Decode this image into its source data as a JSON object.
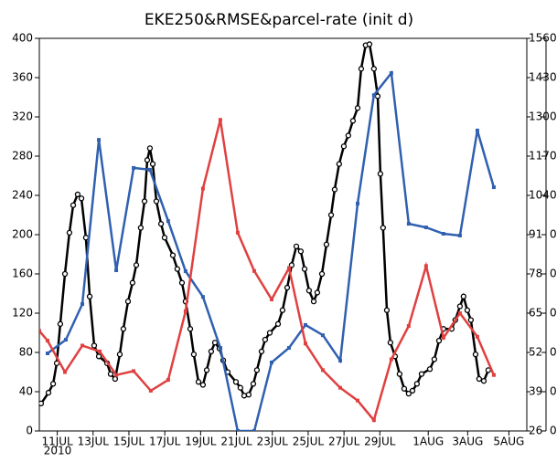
{
  "chart_data": {
    "type": "line",
    "title": "EKE250&RMSE&parcel-rate (init d)",
    "x_year_label": "2010",
    "xlim": [
      0,
      27.2
    ],
    "xticks": [
      {
        "value": 1,
        "label": "11JUL"
      },
      {
        "value": 3,
        "label": "13JUL"
      },
      {
        "value": 5,
        "label": "15JUL"
      },
      {
        "value": 7,
        "label": "17JUL"
      },
      {
        "value": 9,
        "label": "19JUL"
      },
      {
        "value": 11,
        "label": "21JUL"
      },
      {
        "value": 13,
        "label": "23JUL"
      },
      {
        "value": 15,
        "label": "25JUL"
      },
      {
        "value": 17,
        "label": "27JUL"
      },
      {
        "value": 19,
        "label": "29JUL"
      },
      {
        "value": 21.7,
        "label": "1AUG"
      },
      {
        "value": 23.9,
        "label": "3AUG"
      },
      {
        "value": 26.2,
        "label": "5AUG"
      }
    ],
    "ylim": [
      0,
      400
    ],
    "yticks": [
      0,
      40,
      80,
      120,
      160,
      200,
      240,
      280,
      320,
      360,
      400
    ],
    "y2lim": [
      26,
      156
    ],
    "y2ticks": [
      26,
      39,
      52,
      65,
      78,
      91,
      104,
      117,
      130,
      143,
      156
    ],
    "y3tick_labels": [
      "0",
      "0",
      "0",
      "0",
      "0",
      "0",
      "0",
      "0",
      "0",
      "0",
      "0"
    ],
    "series": [
      {
        "color": "#000000",
        "marker": "circle",
        "x": [
          0.1,
          0.51,
          0.77,
          0.97,
          1.17,
          1.43,
          1.68,
          1.89,
          2.14,
          2.35,
          2.6,
          2.81,
          3.06,
          3.32,
          3.78,
          3.98,
          4.23,
          4.49,
          4.69,
          4.95,
          5.2,
          5.41,
          5.66,
          5.87,
          6.02,
          6.17,
          6.33,
          6.53,
          6.79,
          6.99,
          7.45,
          7.7,
          7.96,
          8.16,
          8.42,
          8.62,
          8.88,
          9.13,
          9.34,
          9.59,
          9.8,
          10.05,
          10.26,
          10.51,
          10.97,
          11.22,
          11.43,
          11.68,
          11.94,
          12.14,
          12.4,
          12.6,
          12.86,
          13.32,
          13.57,
          13.83,
          14.08,
          14.34,
          14.59,
          14.8,
          15.05,
          15.31,
          15.51,
          15.77,
          16.02,
          16.28,
          16.48,
          16.73,
          16.99,
          17.24,
          17.5,
          17.76,
          17.96,
          18.21,
          18.42,
          18.67,
          18.88,
          19.03,
          19.18,
          19.39,
          19.59,
          19.85,
          20.1,
          20.36,
          20.61,
          20.82,
          21.07,
          21.33,
          21.79,
          22.04,
          22.3,
          22.55,
          23.01,
          23.21,
          23.47,
          23.67,
          23.88,
          24.08,
          24.34,
          24.54,
          24.8,
          25.05
        ],
        "values": [
          28,
          39,
          48,
          69,
          109,
          160,
          202,
          230,
          241,
          237,
          197,
          137,
          87,
          76,
          69,
          58,
          53,
          78,
          104,
          132,
          151,
          169,
          207,
          234,
          276,
          288,
          272,
          234,
          211,
          197,
          179,
          165,
          151,
          132,
          104,
          78,
          50,
          47,
          62,
          81,
          90,
          84,
          72,
          60,
          50,
          44,
          36,
          37,
          48,
          62,
          81,
          93,
          100,
          109,
          123,
          146,
          169,
          188,
          183,
          165,
          143,
          132,
          141,
          160,
          190,
          220,
          246,
          272,
          290,
          301,
          316,
          329,
          369,
          393,
          394,
          369,
          341,
          262,
          207,
          123,
          90,
          76,
          58,
          43,
          38,
          41,
          48,
          58,
          63,
          73,
          92,
          104,
          104,
          113,
          127,
          137,
          123,
          113,
          78,
          53,
          51,
          62
        ]
      },
      {
        "color": "#3060b0",
        "marker": "square",
        "axis": "y2",
        "x": [
          0.46,
          1.48,
          2.4,
          3.32,
          4.29,
          5.26,
          6.17,
          7.19,
          8.16,
          9.13,
          10.1,
          11.07,
          11.99,
          12.96,
          13.93,
          14.85,
          15.82,
          16.79,
          17.76,
          18.67,
          19.64,
          20.61,
          21.58,
          22.55,
          23.47,
          24.44,
          25.36
        ],
        "values": [
          51.7,
          56.2,
          68.0,
          122.4,
          79.2,
          113.1,
          112.5,
          95.5,
          78.9,
          70.4,
          53.5,
          26,
          26,
          48.7,
          53.5,
          61.1,
          57.7,
          49.3,
          101.3,
          137.2,
          144.5,
          94.6,
          93.4,
          91.3,
          90.7,
          125.5,
          106.7
        ]
      },
      {
        "color": "#e04040",
        "marker": "square",
        "x": [
          0,
          0.46,
          1.43,
          2.4,
          3.37,
          4.29,
          5.26,
          6.22,
          7.19,
          8.16,
          9.13,
          10.1,
          11.07,
          11.99,
          12.96,
          13.93,
          14.85,
          15.82,
          16.79,
          17.76,
          18.67,
          19.64,
          20.61,
          21.58,
          22.55,
          23.47,
          24.44,
          25.36
        ],
        "values": [
          102,
          92,
          60,
          87,
          81,
          57,
          61,
          41,
          52,
          122,
          247,
          317,
          202,
          163,
          134,
          166,
          89,
          62,
          44,
          31,
          11,
          73,
          107,
          168,
          95,
          120,
          96,
          57
        ]
      }
    ]
  }
}
